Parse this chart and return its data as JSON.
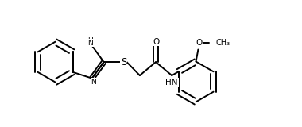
{
  "bg_color": "#ffffff",
  "line_color": "#000000",
  "lw": 1.4,
  "fs": 7.5,
  "figsize": [
    3.8,
    1.6
  ],
  "dpi": 100,
  "xlim": [
    -0.05,
    3.85
  ],
  "ylim": [
    -0.05,
    1.65
  ]
}
